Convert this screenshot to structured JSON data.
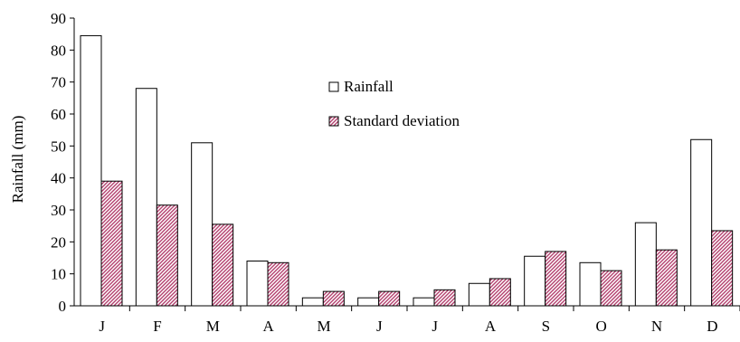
{
  "chart_data": {
    "type": "bar",
    "title": "",
    "xlabel": "",
    "ylabel": "Rainfall (mm)",
    "ylim": [
      0,
      90
    ],
    "yticks": [
      0,
      10,
      20,
      30,
      40,
      50,
      60,
      70,
      80,
      90
    ],
    "grid": false,
    "legend_position": "center-top",
    "categories": [
      "J",
      "F",
      "M",
      "A",
      "M",
      "J",
      "J",
      "A",
      "S",
      "O",
      "N",
      "D"
    ],
    "series": [
      {
        "name": "Rainfall",
        "pattern": "plain",
        "fill": "#ffffff",
        "values": [
          84.5,
          68,
          51,
          14,
          2.5,
          2.5,
          2.5,
          7,
          15.5,
          13.5,
          26,
          52
        ]
      },
      {
        "name": "Standard deviation",
        "pattern": "diagonal-hatch",
        "fill": "#b3406e",
        "values": [
          39,
          31.5,
          25.5,
          13.5,
          4.5,
          4.5,
          5,
          8.5,
          17,
          11,
          17.5,
          23.5
        ]
      }
    ]
  }
}
